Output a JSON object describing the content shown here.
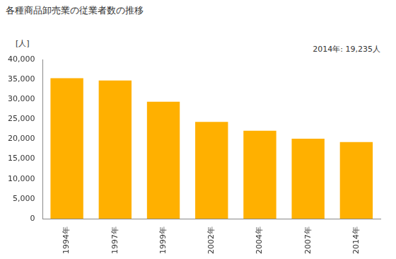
{
  "chart_data": {
    "type": "bar",
    "title": "各種商品卸売業の従業者数の推移",
    "y_label": "[人]",
    "annotation": "2014年: 19,235人",
    "categories": [
      "1994年",
      "1997年",
      "1999年",
      "2002年",
      "2004年",
      "2007年",
      "2014年"
    ],
    "values": [
      35300,
      34700,
      29400,
      24300,
      22100,
      20100,
      19235
    ],
    "color": "#ffb000",
    "ylim": [
      0,
      40000
    ],
    "yticks": [
      0,
      {
        "value": 5000,
        "label": "5,000"
      },
      {
        "value": 10000,
        "label": "10,000"
      },
      {
        "value": 15000,
        "label": "15,000"
      },
      {
        "value": 20000,
        "label": "20,000"
      },
      {
        "value": 25000,
        "label": "25,000"
      },
      {
        "value": 30000,
        "label": "30,000"
      },
      {
        "value": 35000,
        "label": "35,000"
      },
      {
        "value": 40000,
        "label": "40,000"
      }
    ],
    "grid": false
  }
}
